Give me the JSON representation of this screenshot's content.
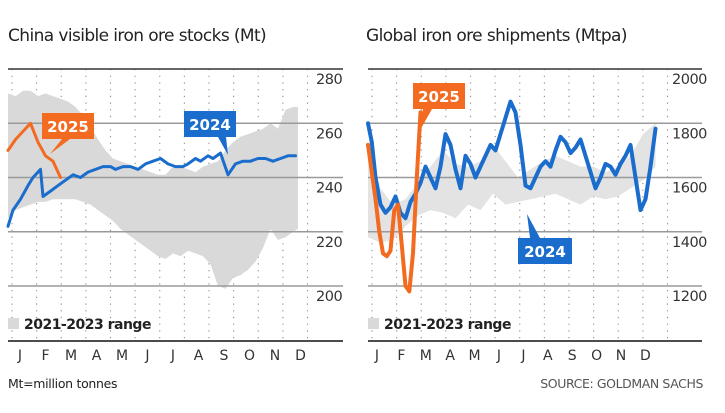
{
  "colors": {
    "series_2024": "#1a6dcc",
    "series_2025": "#f26b21",
    "range_fill": "#d9d9d9",
    "range_fill_right": "#e3e3e3",
    "gridline": "#9a9a9a",
    "axis": "#333333"
  },
  "footnote": "Mt=million tonnes",
  "source": "SOURCE: GOLDMAN SACHS",
  "chart_data": [
    {
      "type": "line",
      "title": "China visible iron ore stocks (Mt)",
      "xlabel": "",
      "ylabel": "",
      "x_categories": [
        "J",
        "F",
        "M",
        "A",
        "M",
        "J",
        "J",
        "A",
        "S",
        "O",
        "N",
        "D"
      ],
      "x_domain": [
        0,
        12
      ],
      "ylim": [
        193,
        283
      ],
      "yticks": [
        200,
        220,
        240,
        260,
        280
      ],
      "ytick_labels": [
        "200",
        "220",
        "240",
        "260",
        "280"
      ],
      "y_axis_side": "right",
      "grid": "horizontal solid + vertical dotted",
      "legend": {
        "position": "bottom-left",
        "entries": [
          "2021-2023 range"
        ]
      },
      "range_band": {
        "name": "2021-2023 range",
        "x": [
          0.0,
          0.3,
          0.6,
          0.9,
          1.2,
          1.5,
          1.8,
          2.1,
          2.4,
          2.7,
          3.0,
          3.3,
          3.6,
          3.9,
          4.2,
          4.5,
          4.8,
          5.1,
          5.4,
          5.7,
          6.0,
          6.3,
          6.6,
          6.9,
          7.2,
          7.5,
          7.8,
          8.1,
          8.4,
          8.7,
          9.0,
          9.3,
          9.6,
          9.9,
          10.2,
          10.5,
          10.8,
          11.1,
          11.4,
          11.6
        ],
        "high": [
          271,
          270,
          272,
          272,
          270,
          271,
          270,
          269,
          268,
          266,
          263,
          259,
          254,
          250,
          247,
          246,
          245,
          244,
          243,
          242,
          241,
          241,
          244,
          244,
          243,
          242,
          244,
          245,
          246,
          250,
          253,
          255,
          256,
          257,
          258,
          260,
          258,
          265,
          266,
          266
        ],
        "low": [
          225,
          228,
          229,
          230,
          231,
          231,
          232,
          232,
          232,
          232,
          231,
          230,
          228,
          226,
          224,
          221,
          219,
          217,
          215,
          213,
          211,
          210,
          212,
          211,
          213,
          212,
          211,
          208,
          200,
          199,
          203,
          204,
          206,
          209,
          214,
          221,
          217,
          218,
          220,
          221
        ]
      },
      "series": [
        {
          "name": "2024",
          "x": [
            0.0,
            0.2,
            0.5,
            0.8,
            1.0,
            1.3,
            1.4,
            1.7,
            2.0,
            2.3,
            2.6,
            2.9,
            3.2,
            3.5,
            3.8,
            4.1,
            4.3,
            4.6,
            4.9,
            5.2,
            5.5,
            5.8,
            6.1,
            6.4,
            6.7,
            7.0,
            7.2,
            7.5,
            7.7,
            8.0,
            8.2,
            8.5,
            8.8,
            9.1,
            9.4,
            9.7,
            10.0,
            10.3,
            10.6,
            10.9,
            11.2,
            11.5
          ],
          "values": [
            222,
            228,
            232,
            237,
            240,
            243,
            233,
            235,
            237,
            239,
            241,
            240,
            242,
            243,
            244,
            244,
            243,
            244,
            244,
            243,
            245,
            246,
            247,
            245,
            244,
            244,
            245,
            247,
            246,
            248,
            247,
            249,
            241,
            245,
            246,
            246,
            247,
            247,
            246,
            247,
            248,
            248
          ]
        },
        {
          "name": "2025",
          "x": [
            0.0,
            0.3,
            0.6,
            0.9,
            1.2,
            1.5,
            1.8,
            2.1
          ],
          "values": [
            250,
            254,
            257,
            260,
            253,
            248,
            246,
            240
          ]
        }
      ],
      "annotations": [
        {
          "text": "2025",
          "series": "2025"
        },
        {
          "text": "2024",
          "series": "2024"
        }
      ]
    },
    {
      "type": "line",
      "title": "Global iron ore shipments (Mtpa)",
      "xlabel": "",
      "ylabel": "",
      "x_categories": [
        "J",
        "F",
        "M",
        "A",
        "M",
        "J",
        "J",
        "A",
        "S",
        "O",
        "N",
        "D"
      ],
      "x_domain": [
        0,
        12
      ],
      "ylim": [
        1130,
        2030
      ],
      "yticks": [
        1200,
        1400,
        1600,
        1800,
        2000
      ],
      "ytick_labels": [
        "1200",
        "1400",
        "1600",
        "1800",
        "2000"
      ],
      "y_axis_side": "right",
      "grid": "horizontal solid + vertical dotted",
      "legend": {
        "position": "bottom-left",
        "entries": [
          "2021-2023 range"
        ]
      },
      "range_band": {
        "name": "2021-2023 range",
        "x": [
          0.0,
          0.5,
          1.0,
          1.5,
          2.0,
          2.5,
          3.0,
          3.5,
          4.0,
          4.5,
          5.0,
          5.5,
          6.0,
          6.5,
          7.0,
          7.5,
          8.0,
          8.5,
          9.0,
          9.5,
          10.0,
          10.5,
          11.0,
          11.5
        ],
        "high": [
          1720,
          1560,
          1500,
          1520,
          1580,
          1640,
          1700,
          1650,
          1640,
          1660,
          1720,
          1660,
          1600,
          1630,
          1660,
          1680,
          1660,
          1640,
          1640,
          1620,
          1640,
          1680,
          1760,
          1800
        ],
        "low": [
          1380,
          1360,
          1370,
          1420,
          1460,
          1480,
          1470,
          1450,
          1500,
          1480,
          1540,
          1500,
          1510,
          1520,
          1530,
          1540,
          1520,
          1500,
          1530,
          1520,
          1530,
          1560,
          1590,
          1640
        ]
      },
      "series": [
        {
          "name": "2024",
          "x": [
            0.0,
            0.15,
            0.3,
            0.5,
            0.7,
            0.9,
            1.1,
            1.3,
            1.5,
            1.7,
            1.9,
            2.1,
            2.3,
            2.5,
            2.7,
            2.9,
            3.1,
            3.3,
            3.5,
            3.7,
            3.9,
            4.1,
            4.3,
            4.5,
            4.7,
            4.9,
            5.1,
            5.3,
            5.5,
            5.7,
            5.9,
            6.1,
            6.3,
            6.5,
            6.7,
            6.9,
            7.1,
            7.3,
            7.5,
            7.7,
            7.9,
            8.1,
            8.3,
            8.5,
            8.7,
            8.9,
            9.1,
            9.3,
            9.5,
            9.7,
            9.9,
            10.1,
            10.3,
            10.5,
            10.7,
            10.9,
            11.1,
            11.3,
            11.5
          ],
          "values": [
            1800,
            1730,
            1600,
            1500,
            1470,
            1490,
            1530,
            1470,
            1450,
            1510,
            1540,
            1580,
            1640,
            1600,
            1560,
            1640,
            1760,
            1720,
            1630,
            1560,
            1680,
            1650,
            1600,
            1640,
            1680,
            1720,
            1700,
            1760,
            1820,
            1880,
            1840,
            1720,
            1570,
            1560,
            1600,
            1640,
            1660,
            1640,
            1700,
            1750,
            1730,
            1690,
            1710,
            1740,
            1680,
            1620,
            1560,
            1600,
            1650,
            1640,
            1610,
            1650,
            1680,
            1720,
            1600,
            1480,
            1520,
            1640,
            1780
          ]
        },
        {
          "name": "2025",
          "x": [
            0.0,
            0.15,
            0.3,
            0.45,
            0.6,
            0.75,
            0.9,
            1.05,
            1.2,
            1.35,
            1.5,
            1.65,
            1.8,
            1.95,
            2.1
          ],
          "values": [
            1720,
            1620,
            1520,
            1400,
            1320,
            1310,
            1330,
            1480,
            1500,
            1350,
            1200,
            1180,
            1320,
            1600,
            1840
          ]
        }
      ],
      "annotations": [
        {
          "text": "2025",
          "series": "2025"
        },
        {
          "text": "2024",
          "series": "2024"
        }
      ]
    }
  ]
}
